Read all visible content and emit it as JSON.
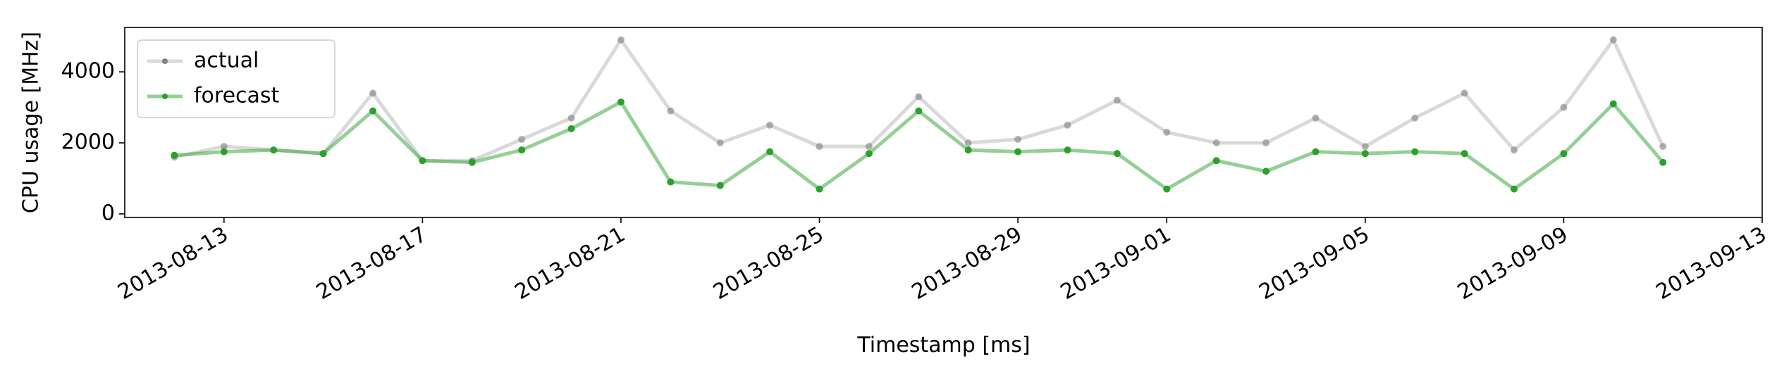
{
  "chart_data": {
    "type": "line",
    "xlabel": "Timestamp [ms]",
    "ylabel": "CPU usage [MHz]",
    "x": [
      "2013-08-12",
      "2013-08-13",
      "2013-08-14",
      "2013-08-15",
      "2013-08-16",
      "2013-08-17",
      "2013-08-18",
      "2013-08-19",
      "2013-08-20",
      "2013-08-21",
      "2013-08-22",
      "2013-08-23",
      "2013-08-24",
      "2013-08-25",
      "2013-08-26",
      "2013-08-27",
      "2013-08-28",
      "2013-08-29",
      "2013-08-30",
      "2013-08-31",
      "2013-09-01",
      "2013-09-02",
      "2013-09-03",
      "2013-09-04",
      "2013-09-05",
      "2013-09-06",
      "2013-09-07",
      "2013-09-08",
      "2013-09-09",
      "2013-09-10",
      "2013-09-11"
    ],
    "series": [
      {
        "name": "actual",
        "color": "#808080",
        "values": [
          1600,
          1900,
          1800,
          1700,
          3400,
          1500,
          1500,
          2100,
          2700,
          4900,
          2900,
          2000,
          2500,
          1900,
          1900,
          3300,
          2000,
          2100,
          2500,
          3200,
          2300,
          2000,
          2000,
          2700,
          1900,
          2700,
          3400,
          1800,
          3000,
          4900,
          1900
        ]
      },
      {
        "name": "forecast",
        "color": "#2ca02c",
        "values": [
          1650,
          1750,
          1800,
          1700,
          2900,
          1500,
          1450,
          1800,
          2400,
          3150,
          900,
          800,
          1750,
          700,
          1700,
          2900,
          1800,
          1750,
          1800,
          1700,
          700,
          1500,
          1200,
          1750,
          1700,
          1750,
          1700,
          700,
          1700,
          3100,
          1450
        ]
      }
    ],
    "xlim": [
      "2013-08-11",
      "2013-09-13"
    ],
    "xticks": [
      "2013-08-13",
      "2013-08-17",
      "2013-08-21",
      "2013-08-25",
      "2013-08-29",
      "2013-09-01",
      "2013-09-05",
      "2013-09-09",
      "2013-09-13"
    ],
    "ylim": [
      -100,
      5250
    ],
    "yticks": [
      0,
      2000,
      4000
    ],
    "legend": "upper left"
  }
}
